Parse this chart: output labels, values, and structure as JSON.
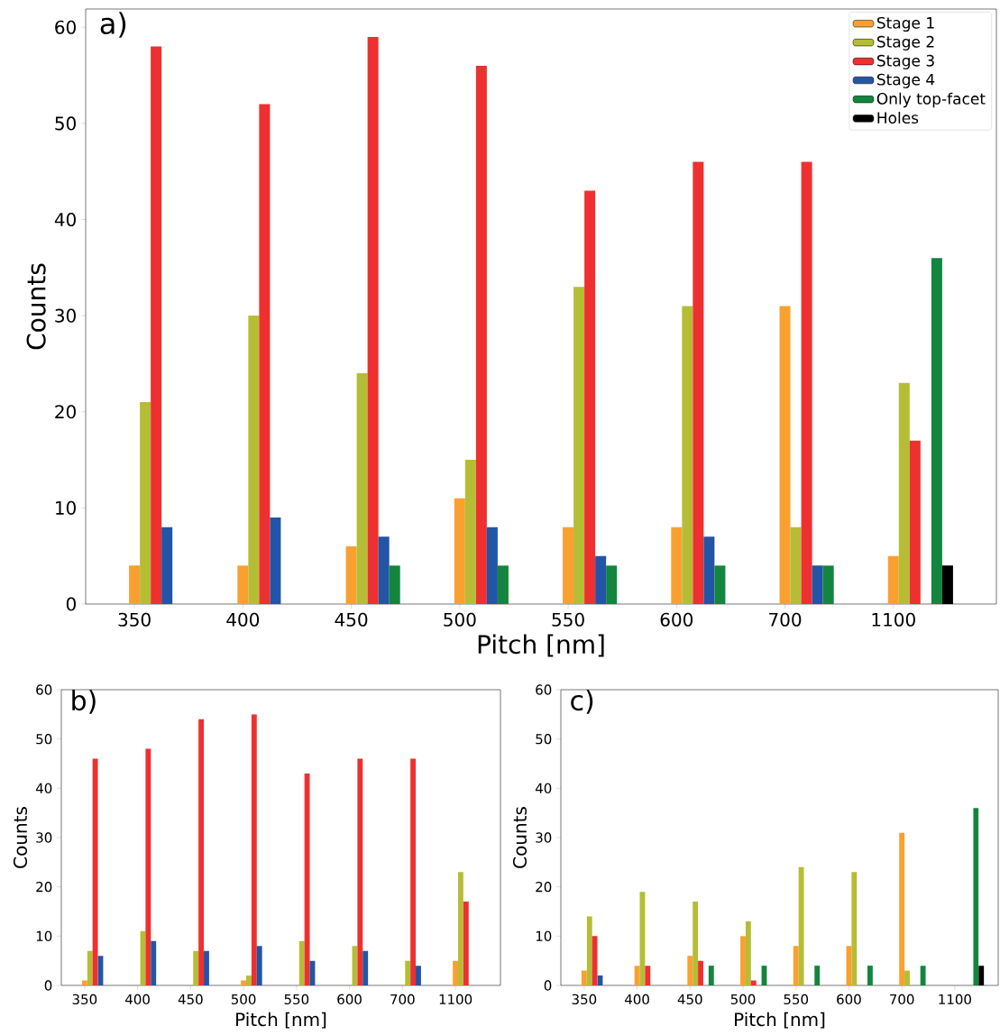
{
  "chart_data": [
    {
      "type": "bar",
      "title": "a)",
      "xlabel": "Pitch [nm]",
      "ylabel": "Counts",
      "categories": [
        "350",
        "400",
        "450",
        "500",
        "550",
        "600",
        "700",
        "1100"
      ],
      "ylim": [
        0,
        61.9
      ],
      "yticks": [
        0,
        10,
        20,
        30,
        40,
        50,
        60
      ],
      "legend": "top right",
      "series": [
        {
          "name": "Stage 1",
          "color": "#f9a030",
          "values": [
            4,
            4,
            6,
            11,
            8,
            8,
            31,
            5
          ]
        },
        {
          "name": "Stage 2",
          "color": "#b5bd35",
          "values": [
            21,
            30,
            24,
            15,
            33,
            31,
            8,
            23
          ]
        },
        {
          "name": "Stage 3",
          "color": "#ee3030",
          "values": [
            58,
            52,
            59,
            56,
            43,
            46,
            46,
            17
          ]
        },
        {
          "name": "Stage 4",
          "color": "#2255a5",
          "values": [
            8,
            9,
            7,
            8,
            5,
            7,
            4,
            0
          ]
        },
        {
          "name": "Only top-facet",
          "color": "#13853e",
          "values": [
            0,
            0,
            4,
            4,
            4,
            4,
            4,
            36
          ]
        },
        {
          "name": "Holes",
          "color": "#000000",
          "values": [
            0,
            0,
            0,
            0,
            0,
            0,
            0,
            4
          ]
        }
      ]
    },
    {
      "type": "bar",
      "title": "b)",
      "xlabel": "Pitch [nm]",
      "ylabel": "Counts",
      "categories": [
        "350",
        "400",
        "450",
        "500",
        "550",
        "600",
        "700",
        "1100"
      ],
      "ylim": [
        0,
        60
      ],
      "yticks": [
        0,
        10,
        20,
        30,
        40,
        50,
        60
      ],
      "series": [
        {
          "color": "#f9a030",
          "values": [
            1,
            0,
            0,
            1,
            0,
            0,
            0,
            5
          ]
        },
        {
          "color": "#b5bd35",
          "values": [
            7,
            11,
            7,
            2,
            9,
            8,
            5,
            23
          ]
        },
        {
          "color": "#ee3030",
          "values": [
            46,
            48,
            54,
            55,
            43,
            46,
            46,
            17
          ]
        },
        {
          "color": "#2255a5",
          "values": [
            6,
            9,
            7,
            8,
            5,
            7,
            4,
            0
          ]
        },
        {
          "color": "#13853e",
          "values": [
            0,
            0,
            0,
            0,
            0,
            0,
            0,
            0
          ]
        },
        {
          "color": "#000000",
          "values": [
            0,
            0,
            0,
            0,
            0,
            0,
            0,
            0
          ]
        }
      ]
    },
    {
      "type": "bar",
      "title": "c)",
      "xlabel": "Pitch [nm]",
      "ylabel": "Counts",
      "categories": [
        "350",
        "400",
        "450",
        "500",
        "550",
        "600",
        "700",
        "1100"
      ],
      "ylim": [
        0,
        60
      ],
      "yticks": [
        0,
        10,
        20,
        30,
        40,
        50,
        60
      ],
      "series": [
        {
          "color": "#f9a030",
          "values": [
            3,
            4,
            6,
            10,
            8,
            8,
            31,
            0
          ]
        },
        {
          "color": "#b5bd35",
          "values": [
            14,
            19,
            17,
            13,
            24,
            23,
            3,
            0
          ]
        },
        {
          "color": "#ee3030",
          "values": [
            10,
            4,
            5,
            1,
            0,
            0,
            0,
            0
          ]
        },
        {
          "color": "#2255a5",
          "values": [
            2,
            0,
            0,
            0,
            0,
            0,
            0,
            0
          ]
        },
        {
          "color": "#13853e",
          "values": [
            0,
            0,
            4,
            4,
            4,
            4,
            4,
            36
          ]
        },
        {
          "color": "#000000",
          "values": [
            0,
            0,
            0,
            0,
            0,
            0,
            0,
            4
          ]
        }
      ]
    }
  ]
}
